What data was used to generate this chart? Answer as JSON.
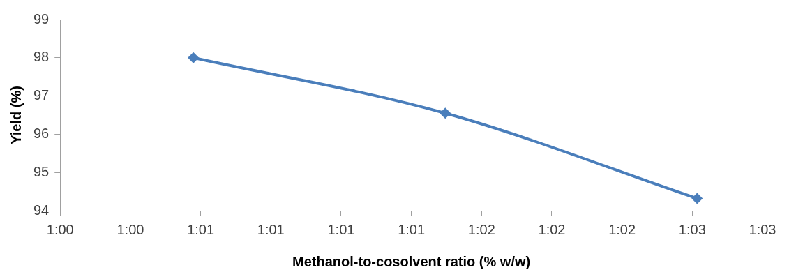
{
  "chart_data": {
    "type": "line",
    "xlabel": "Methanol-to-cosolvent ratio (% w/w)",
    "ylabel": "Yield (%)",
    "x": [
      60.55,
      61.59,
      62.63
    ],
    "series": [
      {
        "color": "#4a7ebb",
        "values": [
          98.0,
          96.55,
          94.32
        ]
      }
    ],
    "xlim": [
      60,
      62.9
    ],
    "xticks": [
      {
        "value": 60,
        "label": "1:00"
      },
      {
        "value": 60.29,
        "label": "1:00"
      },
      {
        "value": 60.58,
        "label": "1:01"
      },
      {
        "value": 60.87,
        "label": "1:01"
      },
      {
        "value": 61.16,
        "label": "1:01"
      },
      {
        "value": 61.45,
        "label": "1:01"
      },
      {
        "value": 61.74,
        "label": "1:02"
      },
      {
        "value": 62.03,
        "label": "1:02"
      },
      {
        "value": 62.32,
        "label": "1:02"
      },
      {
        "value": 62.61,
        "label": "1:03"
      },
      {
        "value": 62.9,
        "label": "1:03"
      }
    ],
    "ylim": [
      94,
      99
    ],
    "yticks": [
      94,
      95,
      96,
      97,
      98,
      99
    ],
    "grid": false,
    "legend": false,
    "marker": "diamond",
    "line_style": "solid"
  }
}
